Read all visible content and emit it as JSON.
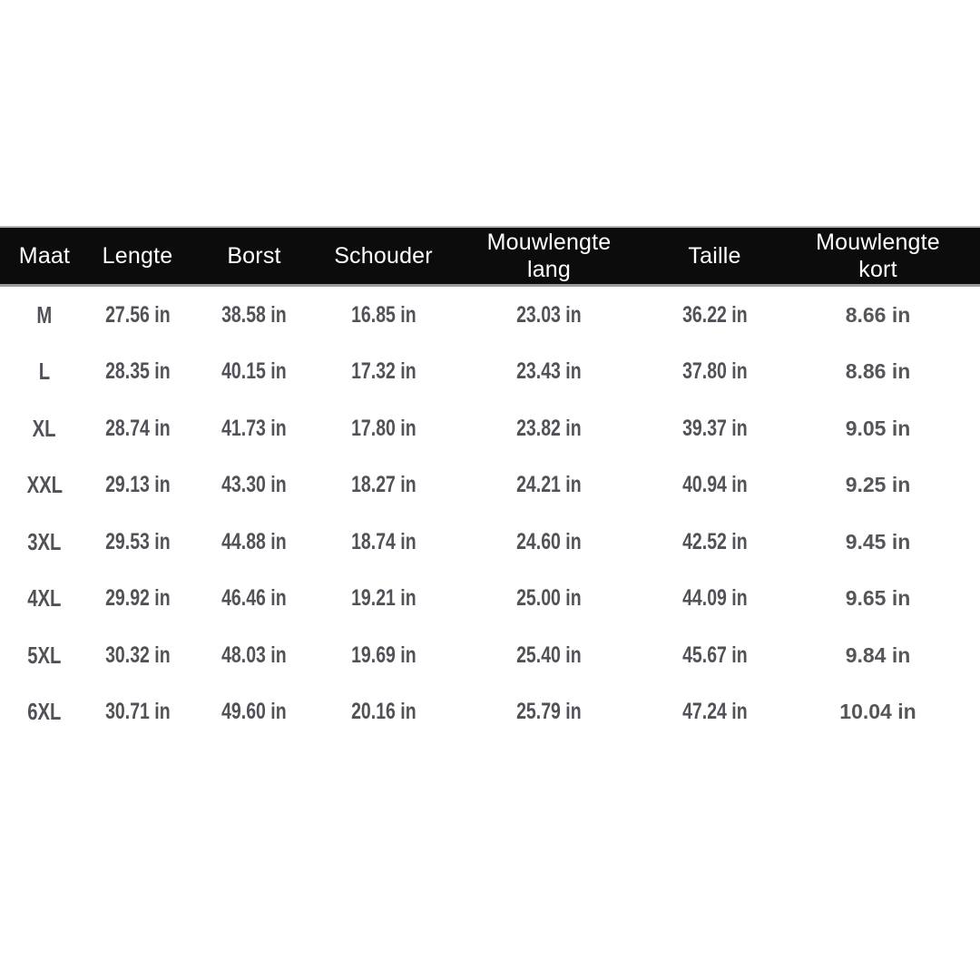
{
  "colors": {
    "background": "#ffffff",
    "header_bg": "#0c0c0d",
    "header_text": "#ffffff",
    "cell_text": "#515257"
  },
  "table": {
    "unit": "in",
    "columns": [
      {
        "id": "maat",
        "lines": [
          "Maat"
        ]
      },
      {
        "id": "lengte",
        "lines": [
          "Lengte"
        ]
      },
      {
        "id": "borst",
        "lines": [
          "Borst"
        ]
      },
      {
        "id": "schouder",
        "lines": [
          "Schouder"
        ]
      },
      {
        "id": "mouwlengte-lang",
        "lines": [
          "Mouwlengte",
          "lang"
        ]
      },
      {
        "id": "taille",
        "lines": [
          "Taille"
        ]
      },
      {
        "id": "mouwlengte-kort",
        "lines": [
          "Mouwlengte",
          "kort"
        ]
      }
    ],
    "rows": [
      {
        "cells": [
          "M",
          "27.56 in",
          "38.58 in",
          "16.85 in",
          "23.03 in",
          "36.22 in",
          "8.66 in"
        ]
      },
      {
        "cells": [
          "L",
          "28.35 in",
          "40.15 in",
          "17.32 in",
          "23.43 in",
          "37.80 in",
          "8.86 in"
        ]
      },
      {
        "cells": [
          "XL",
          "28.74 in",
          "41.73 in",
          "17.80 in",
          "23.82 in",
          "39.37 in",
          "9.05 in"
        ]
      },
      {
        "cells": [
          "XXL",
          "29.13 in",
          "43.30 in",
          "18.27 in",
          "24.21 in",
          "40.94 in",
          "9.25 in"
        ]
      },
      {
        "cells": [
          "3XL",
          "29.53 in",
          "44.88 in",
          "18.74 in",
          "24.60 in",
          "42.52 in",
          "9.45 in"
        ]
      },
      {
        "cells": [
          "4XL",
          "29.92 in",
          "46.46 in",
          "19.21 in",
          "25.00 in",
          "44.09 in",
          "9.65 in"
        ]
      },
      {
        "cells": [
          "5XL",
          "30.32 in",
          "48.03 in",
          "19.69 in",
          "25.40 in",
          "45.67 in",
          "9.84 in"
        ]
      },
      {
        "cells": [
          "6XL",
          "30.71 in",
          "49.60 in",
          "20.16 in",
          "25.79 in",
          "47.24 in",
          "10.04 in"
        ]
      }
    ]
  }
}
